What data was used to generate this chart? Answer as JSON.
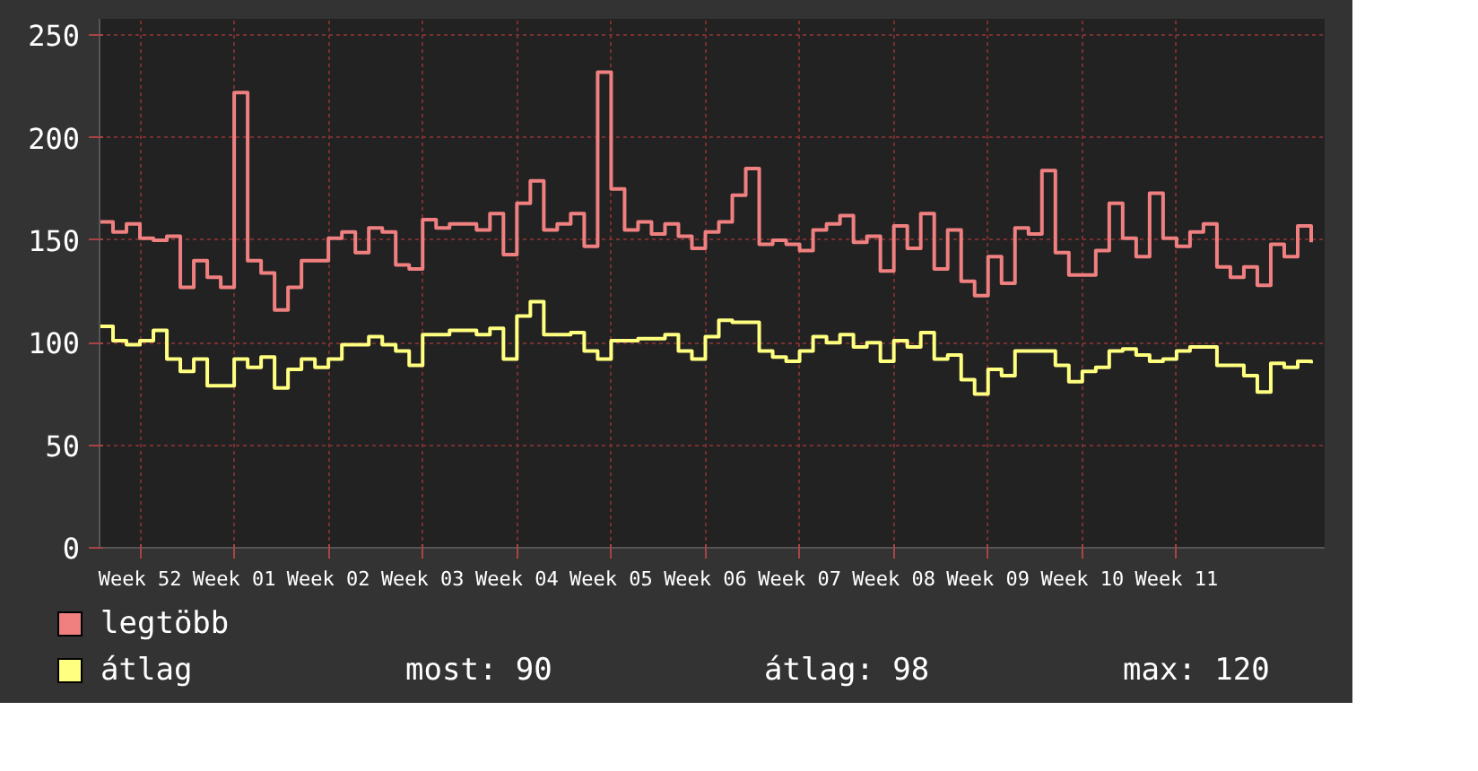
{
  "chart_data": {
    "type": "step",
    "categories": [
      null,
      null,
      null,
      "Week 52",
      null,
      null,
      null,
      null,
      null,
      null,
      "Week 01",
      null,
      null,
      null,
      null,
      null,
      null,
      "Week 02",
      null,
      null,
      null,
      null,
      null,
      null,
      "Week 03",
      null,
      null,
      null,
      null,
      null,
      null,
      "Week 04",
      null,
      null,
      null,
      null,
      null,
      null,
      "Week 05",
      null,
      null,
      null,
      null,
      null,
      null,
      "Week 06",
      null,
      null,
      null,
      null,
      null,
      null,
      "Week 07",
      null,
      null,
      null,
      null,
      null,
      null,
      "Week 08",
      null,
      null,
      null,
      null,
      null,
      null,
      "Week 09",
      null,
      null,
      null,
      null,
      null,
      null,
      "Week 10",
      null,
      null,
      null,
      null,
      null,
      null,
      "Week 11",
      null,
      null,
      null,
      null,
      null,
      null,
      null,
      null,
      null,
      null
    ],
    "series": [
      {
        "name": "legtöbb",
        "color": "#f08080",
        "values": [
          159,
          154,
          158,
          151,
          150,
          152,
          127,
          140,
          132,
          127,
          222,
          140,
          134,
          116,
          127,
          140,
          140,
          151,
          154,
          144,
          156,
          154,
          138,
          136,
          160,
          156,
          158,
          158,
          155,
          163,
          143,
          168,
          179,
          155,
          158,
          163,
          147,
          232,
          175,
          155,
          159,
          153,
          158,
          152,
          146,
          154,
          159,
          172,
          185,
          148,
          150,
          148,
          145,
          155,
          158,
          162,
          149,
          152,
          135,
          157,
          146,
          163,
          136,
          155,
          130,
          123,
          142,
          129,
          156,
          153,
          184,
          144,
          133,
          133,
          145,
          168,
          151,
          142,
          173,
          151,
          147,
          154,
          158,
          137,
          132,
          137,
          128,
          148,
          142,
          157,
          149
        ]
      },
      {
        "name": "átlag",
        "color": "#ffff80",
        "values": [
          108,
          101,
          99,
          101,
          106,
          92,
          86,
          92,
          79,
          79,
          92,
          88,
          93,
          78,
          87,
          92,
          88,
          92,
          99,
          99,
          103,
          99,
          96,
          89,
          104,
          104,
          106,
          106,
          104,
          107,
          92,
          113,
          120,
          104,
          104,
          105,
          96,
          92,
          101,
          101,
          102,
          102,
          104,
          96,
          92,
          103,
          111,
          110,
          110,
          96,
          93,
          91,
          96,
          103,
          100,
          104,
          98,
          100,
          91,
          101,
          98,
          105,
          92,
          94,
          82,
          75,
          87,
          84,
          96,
          96,
          96,
          89,
          81,
          86,
          88,
          96,
          97,
          94,
          91,
          92,
          96,
          98,
          98,
          89,
          89,
          84,
          76,
          90,
          88,
          91,
          90
        ]
      }
    ],
    "ylim": [
      0,
      258
    ],
    "yticks": [
      0,
      50,
      100,
      150,
      200,
      250
    ],
    "grid": true,
    "legend": "bottom",
    "annotations": [
      "most: 90",
      "átlag: 98",
      "max: 120"
    ]
  }
}
